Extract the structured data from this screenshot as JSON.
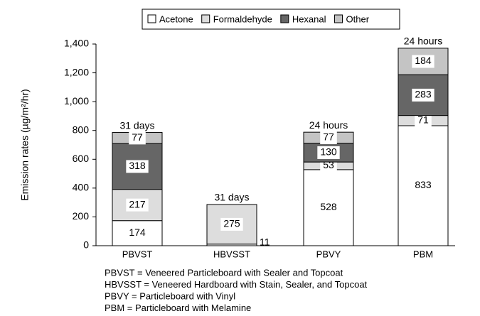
{
  "chart_data": {
    "type": "stacked_bar",
    "y_label": "Emission rates (µg/m²/hr)",
    "categories": [
      "PBVST",
      "HBVSST",
      "PBVY",
      "PBM"
    ],
    "series": [
      {
        "name": "Acetone",
        "color": "#ffffff",
        "values": [
          174,
          11,
          528,
          833
        ]
      },
      {
        "name": "Formaldehyde",
        "color": "#dddddd",
        "values": [
          217,
          275,
          53,
          71
        ]
      },
      {
        "name": "Hexanal",
        "color": "#666666",
        "values": [
          318,
          null,
          130,
          283
        ]
      },
      {
        "name": "Other",
        "color": "#c4c4c4",
        "values": [
          77,
          null,
          77,
          184
        ]
      }
    ],
    "bar_annotations": [
      "31 days",
      "31 days",
      "24 hours",
      "24 hours"
    ],
    "ylim": [
      0,
      1400
    ],
    "yticks": [
      0,
      200,
      400,
      600,
      800,
      {
        "value": 1000,
        "label": "1,000"
      },
      {
        "value": 1200,
        "label": "1,200"
      },
      {
        "value": 1400,
        "label": "1,400"
      }
    ],
    "notes": [
      "PBVST = Veneered Particleboard with Sealer and Topcoat",
      "HBVSST = Veneered Hardboard with Stain, Sealer, and Topcoat",
      "PBVY = Particleboard with Vinyl",
      "PBM = Particleboard with Melamine"
    ]
  }
}
